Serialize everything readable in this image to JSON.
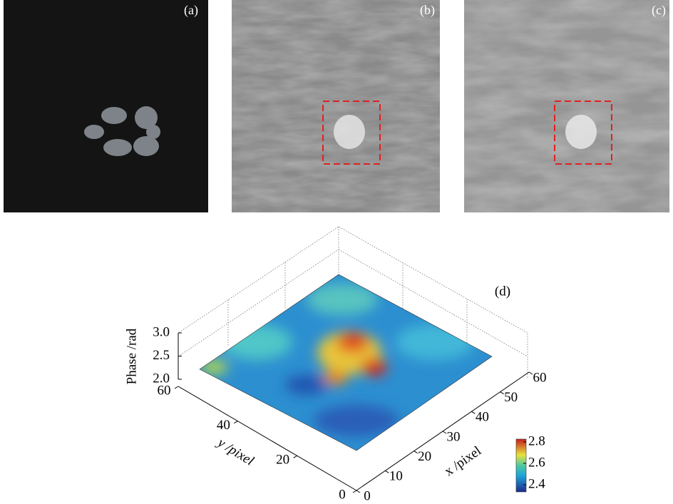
{
  "panels": [
    {
      "label": "(a)"
    },
    {
      "label": "(b)"
    },
    {
      "label": "(c)"
    }
  ],
  "plot": {
    "label": "(d)",
    "z_label": "Phase /rad",
    "z_ticks": [
      {
        "value": 2,
        "label": "2.0"
      },
      {
        "value": 2.5,
        "label": "2.5"
      },
      {
        "value": 3,
        "label": "3.0"
      }
    ],
    "x_label": "x /pixel",
    "x_ticks": [
      0,
      10,
      20,
      30,
      40,
      50,
      60
    ],
    "y_label": "y /pixel",
    "y_ticks": [
      0,
      20,
      40,
      60
    ],
    "colorbar_ticks": [
      2.4,
      2.6,
      2.8
    ]
  }
}
